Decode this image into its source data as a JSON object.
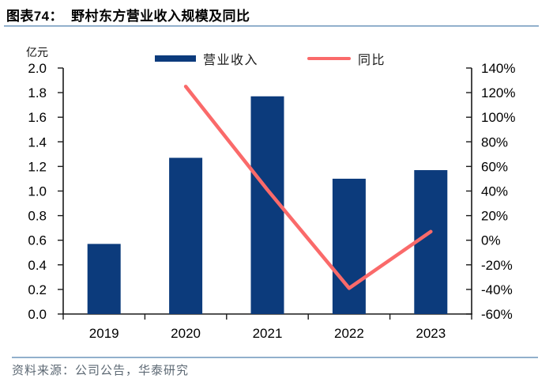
{
  "header": {
    "title": "图表74：  野村东方营业收入规模及同比"
  },
  "footer": {
    "source": "资料来源：公司公告，华泰研究"
  },
  "chart_data": {
    "type": "bar",
    "subtype": "bar+line-dual-axis",
    "categories": [
      "2019",
      "2020",
      "2021",
      "2022",
      "2023"
    ],
    "series": [
      {
        "name": "营业收入",
        "type": "bar",
        "axis": "left",
        "color": "#0c3b7c",
        "values": [
          0.57,
          1.27,
          1.77,
          1.1,
          1.17
        ]
      },
      {
        "name": "同比",
        "type": "line",
        "axis": "right",
        "color": "#fa6a6a",
        "x": [
          "2020",
          "2021",
          "2022",
          "2023"
        ],
        "values": [
          125,
          41,
          -39,
          7
        ],
        "unit": "%"
      }
    ],
    "left_axis": {
      "unit_label": "亿元",
      "min": 0,
      "max": 2.0,
      "step": 0.2
    },
    "right_axis": {
      "min": -60,
      "max": 140,
      "step": 20,
      "format": "percent"
    },
    "legend": [
      {
        "label": "营业收入",
        "swatch": "bar",
        "color": "#0c3b7c"
      },
      {
        "label": "同比",
        "swatch": "line",
        "color": "#fa6a6a"
      }
    ],
    "grid": false,
    "legend_position": "top-center"
  }
}
